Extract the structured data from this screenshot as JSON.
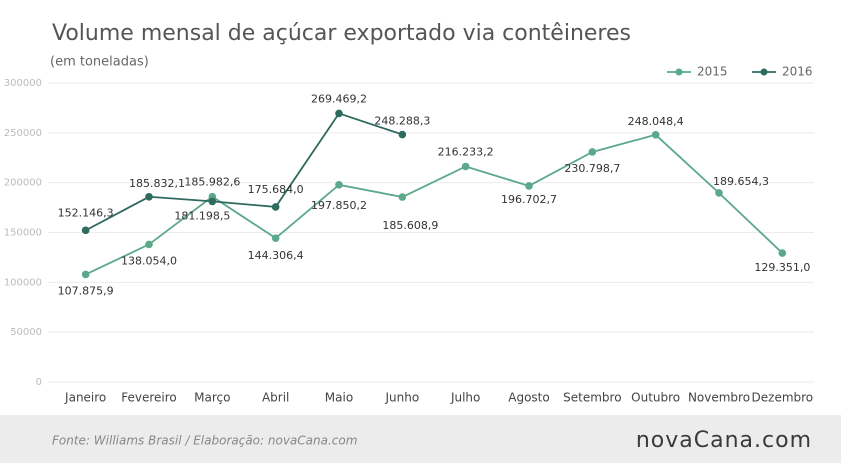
{
  "chart_data": {
    "type": "line",
    "title": "Volume mensal de açúcar exportado via contêineres",
    "subtitle": "(em toneladas)",
    "source": "Fonte:  Williams  Brasil  / Elaboração:  novaCana.com",
    "logo": "novaCana.com",
    "categories": [
      "Janeiro",
      "Fevereiro",
      "Março",
      "Abril",
      "Maio",
      "Junho",
      "Julho",
      "Agosto",
      "Setembro",
      "Outubro",
      "Novembro",
      "Dezembro"
    ],
    "series": [
      {
        "name": "2015",
        "color": "#5ba88a",
        "values": [
          107875.9,
          138054.0,
          185982.6,
          144306.4,
          197850.2,
          185608.9,
          216233.2,
          196702.7,
          230798.7,
          248048.4,
          189654.3,
          129351.0
        ],
        "value_labels": [
          "107.875,9",
          "138.054,0",
          "185.982,6",
          "144.306,4",
          "197.850,2",
          "185.608,9",
          "216.233,2",
          "196.702,7",
          "230.798,7",
          "248.048,4",
          "189.654,3",
          "129.351,0"
        ]
      },
      {
        "name": "2016",
        "color": "#2e6b5e",
        "values": [
          152146.3,
          185832.1,
          181198.5,
          175684.0,
          269469.2,
          248288.3,
          null,
          null,
          null,
          null,
          null,
          null
        ],
        "value_labels": [
          "152.146,3",
          "185.832,1",
          "181.198,5",
          "175.684,0",
          "269.469,2",
          "248.288,3",
          null,
          null,
          null,
          null,
          null,
          null
        ]
      }
    ],
    "ylim": [
      0,
      300000
    ],
    "yticks": [
      0,
      50000,
      100000,
      150000,
      200000,
      250000,
      300000
    ],
    "grid": true,
    "legend": "top-right"
  }
}
